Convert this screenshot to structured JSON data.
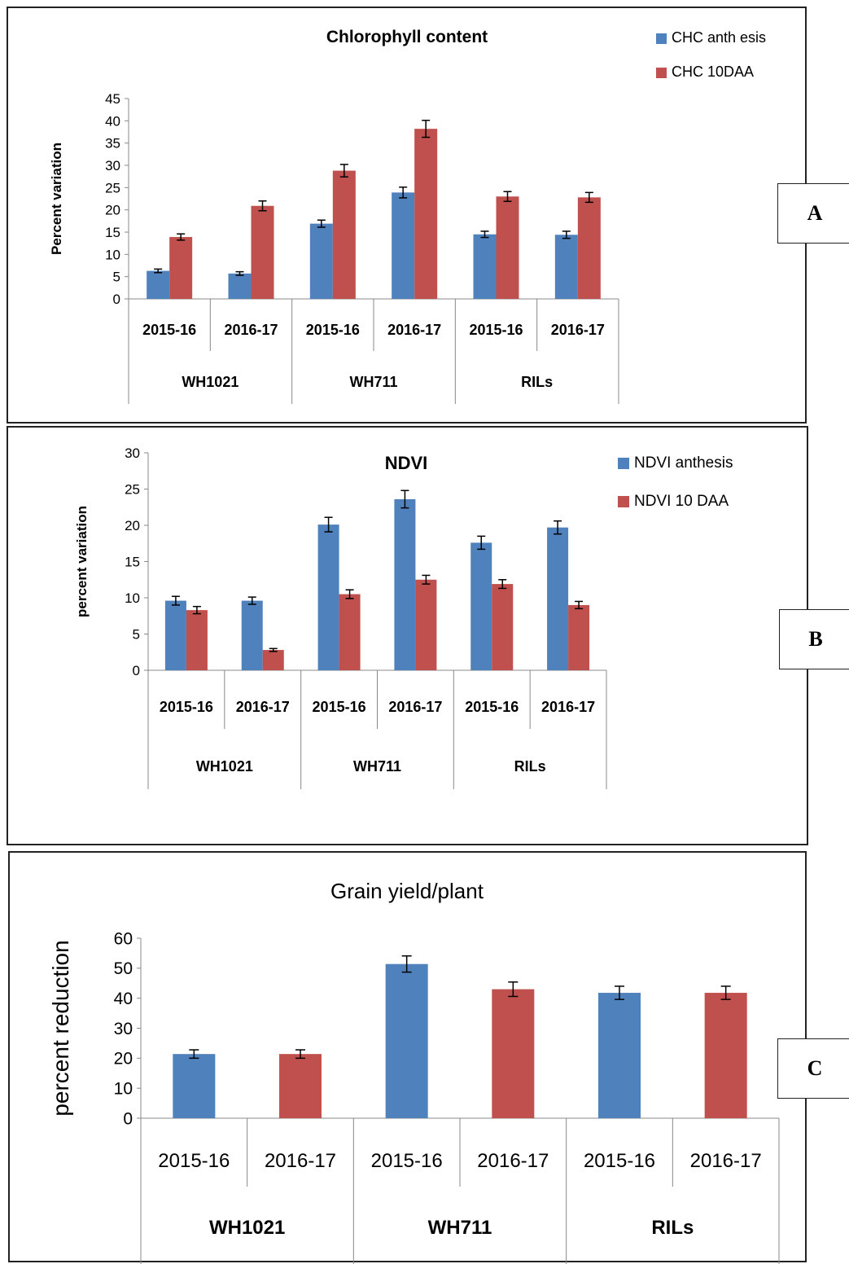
{
  "panel_tags": [
    "A",
    "B",
    "C"
  ],
  "chart_data": [
    {
      "type": "bar",
      "title": "Chlorophyll content",
      "ylabel": "Percent variation",
      "xlabel": "",
      "ylim": [
        0,
        45
      ],
      "yticks": [
        0,
        5,
        10,
        15,
        20,
        25,
        30,
        35,
        40,
        45
      ],
      "groups": [
        "WH1021",
        "WH711",
        "RILs"
      ],
      "categories": [
        "2015-16",
        "2016-17",
        "2015-16",
        "2016-17",
        "2015-16",
        "2016-17"
      ],
      "series": [
        {
          "name": "CHC anth esis",
          "color": "#4F81BD",
          "values": [
            6.3,
            5.7,
            16.9,
            23.9,
            14.5,
            14.4
          ],
          "errors": [
            0.4,
            0.4,
            0.8,
            1.2,
            0.7,
            0.8
          ]
        },
        {
          "name": "CHC 10DAA",
          "color": "#C0504D",
          "values": [
            13.9,
            20.9,
            28.8,
            38.2,
            23.0,
            22.8
          ],
          "errors": [
            0.7,
            1.1,
            1.4,
            1.9,
            1.1,
            1.1
          ]
        }
      ],
      "legend": "top-right",
      "grid": false
    },
    {
      "type": "bar",
      "title": "NDVI",
      "ylabel": "percent variation",
      "xlabel": "",
      "ylim": [
        0,
        30
      ],
      "yticks": [
        0,
        5,
        10,
        15,
        20,
        25,
        30
      ],
      "groups": [
        "WH1021",
        "WH711",
        "RILs"
      ],
      "categories": [
        "2015-16",
        "2016-17",
        "2015-16",
        "2016-17",
        "2015-16",
        "2016-17"
      ],
      "series": [
        {
          "name": "NDVI anthesis",
          "color": "#4F81BD",
          "values": [
            9.6,
            9.6,
            20.1,
            23.6,
            17.6,
            19.7
          ],
          "errors": [
            0.6,
            0.5,
            1.0,
            1.2,
            0.9,
            0.9
          ]
        },
        {
          "name": "NDVI  10 DAA",
          "color": "#C0504D",
          "values": [
            8.3,
            2.8,
            10.5,
            12.5,
            11.9,
            9.0
          ],
          "errors": [
            0.5,
            0.2,
            0.6,
            0.6,
            0.6,
            0.5
          ]
        }
      ],
      "legend": "top-right",
      "grid": false
    },
    {
      "type": "bar",
      "title": "Grain yield/plant",
      "ylabel": "percent reduction",
      "xlabel": "",
      "ylim": [
        0,
        60
      ],
      "yticks": [
        0,
        10,
        20,
        30,
        40,
        50,
        60
      ],
      "groups": [
        "WH1021",
        "WH711",
        "RILs"
      ],
      "categories": [
        "2015-16",
        "2016-17",
        "2015-16",
        "2016-17",
        "2015-16",
        "2016-17"
      ],
      "values": [
        21.4,
        21.4,
        51.4,
        43.0,
        41.8,
        41.8
      ],
      "errors": [
        1.4,
        1.4,
        2.7,
        2.4,
        2.2,
        2.2
      ],
      "colors": [
        "#4F81BD",
        "#C0504D",
        "#4F81BD",
        "#C0504D",
        "#4F81BD",
        "#C0504D"
      ],
      "grid": false
    }
  ]
}
